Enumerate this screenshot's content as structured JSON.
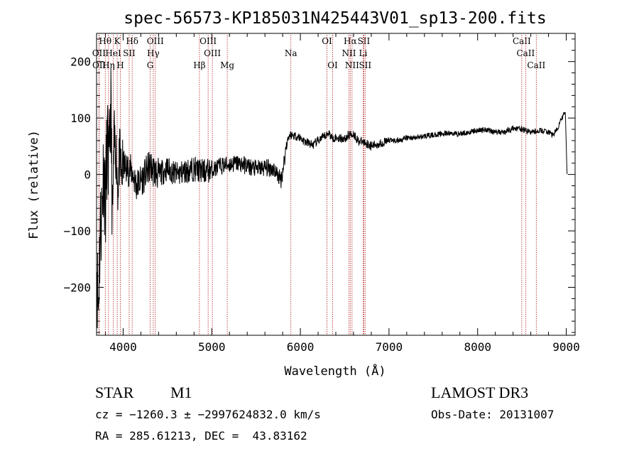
{
  "chart_data": {
    "type": "line",
    "title": "spec-56573-KP185031N425443V01_sp13-200.fits",
    "xlabel": "Wavelength (Å)",
    "ylabel": "Flux (relative)",
    "xlim": [
      3700,
      9100
    ],
    "ylim": [
      -285,
      250
    ],
    "x_ticks": [
      4000,
      5000,
      6000,
      7000,
      8000,
      9000
    ],
    "y_ticks": [
      -200,
      -100,
      0,
      100,
      200
    ],
    "colors": {
      "line": "#000000",
      "marker": "#b22222"
    },
    "series": [
      {
        "name": "flux",
        "x": [
          3700,
          3720,
          3740,
          3760,
          3780,
          3800,
          3820,
          3840,
          3860,
          3880,
          3900,
          3920,
          3940,
          3960,
          3980,
          4000,
          4050,
          4100,
          4150,
          4200,
          4250,
          4300,
          4350,
          4400,
          4500,
          4600,
          4700,
          4800,
          4900,
          5000,
          5100,
          5200,
          5300,
          5400,
          5500,
          5600,
          5700,
          5780,
          5800,
          5850,
          5880,
          5900,
          5950,
          6000,
          6050,
          6100,
          6150,
          6200,
          6250,
          6300,
          6320,
          6350,
          6400,
          6500,
          6550,
          6600,
          6650,
          6700,
          6750,
          6800,
          6900,
          7000,
          7100,
          7200,
          7300,
          7400,
          7500,
          7600,
          7700,
          7800,
          7900,
          8000,
          8100,
          8200,
          8300,
          8400,
          8500,
          8600,
          8700,
          8800,
          8850,
          8900,
          8950,
          8990,
          9000,
          9010
        ],
        "y": [
          -150,
          -240,
          -100,
          -60,
          20,
          -60,
          60,
          0,
          130,
          -80,
          60,
          40,
          -20,
          30,
          0,
          15,
          10,
          5,
          -20,
          -10,
          0,
          15,
          5,
          0,
          10,
          0,
          5,
          10,
          5,
          8,
          15,
          18,
          20,
          15,
          10,
          12,
          10,
          -10,
          5,
          60,
          70,
          70,
          68,
          65,
          58,
          55,
          52,
          60,
          65,
          70,
          75,
          65,
          65,
          63,
          70,
          72,
          60,
          58,
          55,
          50,
          55,
          60,
          60,
          65,
          65,
          68,
          70,
          72,
          73,
          72,
          75,
          78,
          80,
          75,
          75,
          82,
          80,
          75,
          78,
          75,
          70,
          80,
          100,
          110,
          50,
          0
        ]
      }
    ],
    "lines_top": [
      {
        "label": "Hθ",
        "x": 3798
      },
      {
        "label": "K",
        "x": 3933
      },
      {
        "label": "Hδ",
        "x": 4102
      },
      {
        "label": "OIII",
        "x": 4363
      },
      {
        "label": "OIII",
        "x": 4959
      },
      {
        "label": "OI",
        "x": 6300
      },
      {
        "label": "Hα",
        "x": 6563
      },
      {
        "label": "SII",
        "x": 6716
      },
      {
        "label": "CaII",
        "x": 8498
      }
    ],
    "lines_mid": [
      {
        "label": "OII",
        "x": 3727
      },
      {
        "label": "HeI",
        "x": 3889
      },
      {
        "label": "SII",
        "x": 4068
      },
      {
        "label": "Hγ",
        "x": 4340
      },
      {
        "label": "OIII",
        "x": 5007
      },
      {
        "label": "Na",
        "x": 5893
      },
      {
        "label": "NII",
        "x": 6548
      },
      {
        "label": "Li",
        "x": 6708
      },
      {
        "label": "CaII",
        "x": 8542
      }
    ],
    "lines_low": [
      {
        "label": "OII",
        "x": 3729
      },
      {
        "label": "Hη",
        "x": 3835
      },
      {
        "label": "H",
        "x": 3968
      },
      {
        "label": "G",
        "x": 4305
      },
      {
        "label": "Hβ",
        "x": 4861
      },
      {
        "label": "Mg",
        "x": 5175
      },
      {
        "label": "OI",
        "x": 6364
      },
      {
        "label": "NII",
        "x": 6583
      },
      {
        "label": "SII",
        "x": 6731
      },
      {
        "label": "CaII",
        "x": 8662
      }
    ]
  },
  "info": {
    "class": "STAR",
    "subclass": "M1",
    "survey": "LAMOST DR3",
    "cz": "cz = −1260.3 ± −2997624832.0 km/s",
    "obs_date": "Obs-Date: 20131007",
    "coords": "RA = 285.61213, DEC =  43.83162"
  }
}
